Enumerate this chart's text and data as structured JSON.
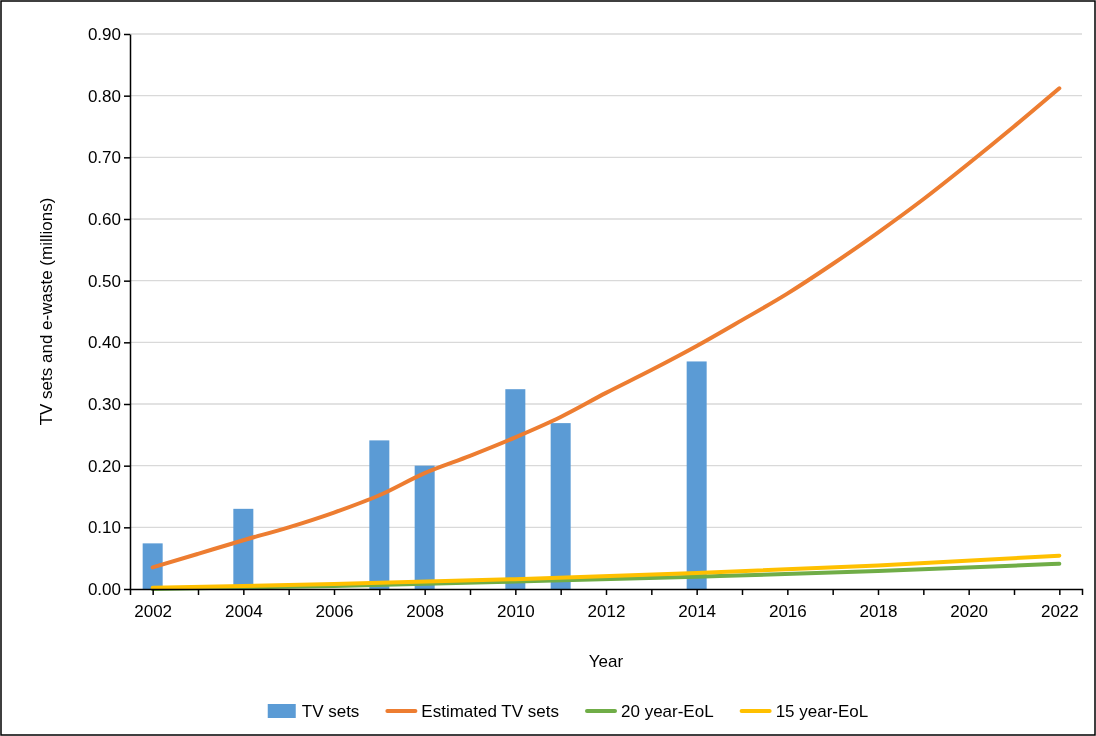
{
  "chart_data": {
    "type": "bar",
    "xlabel": "Year",
    "ylabel": "TV sets and e-waste (millions)",
    "xlim": [
      2001.5,
      2022.5
    ],
    "xticks": [
      2002,
      {
        "value": 2003,
        "label": null
      },
      2004,
      {
        "value": 2005,
        "label": null
      },
      2006,
      {
        "value": 2007,
        "label": null
      },
      2008,
      {
        "value": 2009,
        "label": null
      },
      2010,
      {
        "value": 2011,
        "label": null
      },
      2012,
      {
        "value": 2013,
        "label": null
      },
      2014,
      {
        "value": 2015,
        "label": null
      },
      2016,
      {
        "value": 2017,
        "label": null
      },
      2018,
      {
        "value": 2019,
        "label": null
      },
      2020,
      {
        "value": 2021,
        "label": null
      },
      2022
    ],
    "ylim": [
      0,
      0.9
    ],
    "yticks": [
      {
        "value": 0,
        "label": "0.00"
      },
      {
        "value": 0.1,
        "label": "0.10"
      },
      {
        "value": 0.2,
        "label": "0.20"
      },
      {
        "value": 0.3,
        "label": "0.30"
      },
      {
        "value": 0.4,
        "label": "0.40"
      },
      {
        "value": 0.5,
        "label": "0.50"
      },
      {
        "value": 0.6,
        "label": "0.60"
      },
      {
        "value": 0.7,
        "label": "0.70"
      },
      {
        "value": 0.8,
        "label": "0.80"
      },
      {
        "value": 0.9,
        "label": "0.90"
      }
    ],
    "grid": "y",
    "legend": "bottom",
    "series": [
      {
        "name": "TV sets",
        "color": "#5b9bd5",
        "x": [
          2002,
          2004,
          2007,
          2008,
          2010,
          2011,
          2014
        ],
        "values": [
          0.074,
          0.13,
          0.241,
          0.2,
          0.324,
          0.269,
          0.369
        ]
      },
      {
        "name": "Estimated TV sets",
        "type": "line",
        "color": "#ed7d31",
        "x": [
          2002,
          2003,
          2004,
          2005,
          2006,
          2007,
          2008,
          2009,
          2010,
          2011,
          2012,
          2013,
          2014,
          2015,
          2016,
          2017,
          2018,
          2019,
          2020,
          2021,
          2022
        ],
        "values": [
          0.035,
          0.057,
          0.079,
          0.1,
          0.124,
          0.152,
          0.188,
          0.216,
          0.246,
          0.279,
          0.318,
          0.355,
          0.394,
          0.436,
          0.479,
          0.527,
          0.578,
          0.632,
          0.69,
          0.75,
          0.812
        ]
      },
      {
        "name": "20 year-EoL",
        "type": "line",
        "color": "#70ad47",
        "x": [
          2002,
          2006,
          2010,
          2014,
          2018,
          2022
        ],
        "values": [
          0.0,
          0.005,
          0.012,
          0.02,
          0.029,
          0.041
        ]
      },
      {
        "name": "15 year-EoL",
        "type": "line",
        "color": "#ffc000",
        "x": [
          2002,
          2006,
          2010,
          2014,
          2018,
          2022
        ],
        "values": [
          0.002,
          0.008,
          0.016,
          0.026,
          0.038,
          0.054
        ]
      }
    ]
  }
}
